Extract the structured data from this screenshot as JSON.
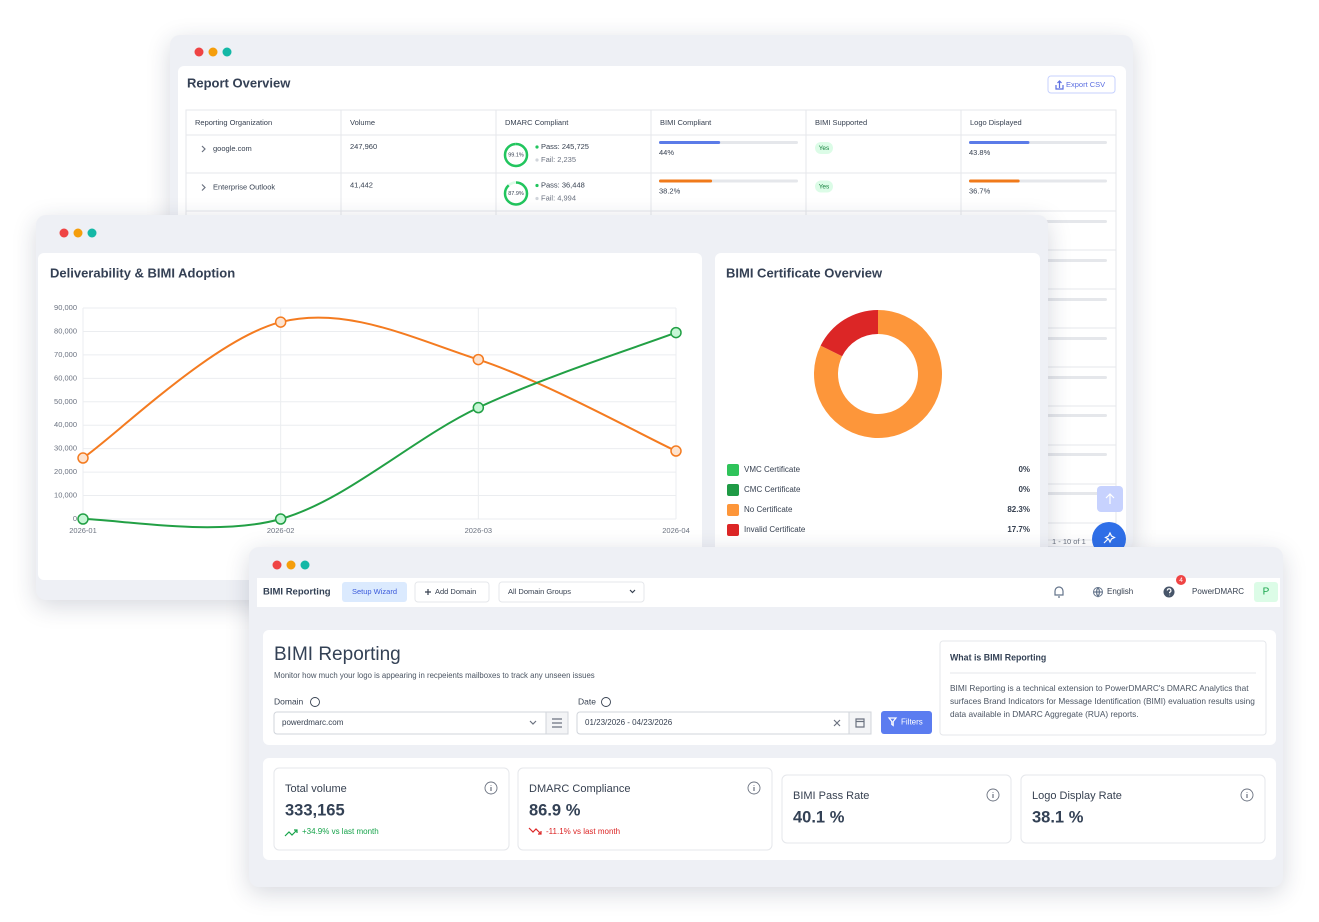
{
  "report_overview": {
    "title": "Report Overview",
    "export": "Export CSV",
    "columns": [
      "Reporting Organization",
      "Volume",
      "DMARC Compliant",
      "BIMI Compliant",
      "BIMI Supported",
      "Logo Displayed"
    ],
    "rows": [
      {
        "organization": "google.com",
        "volume": "247,960",
        "dmarc": {
          "value": 99.1,
          "label": "99.1%"
        },
        "pass": "Pass: 245,725",
        "fail": "Fail: 2,235",
        "bimi_compliant": {
          "value": 44,
          "label": "44%",
          "color": "#5b7be8"
        },
        "bimi_supported": "Yes",
        "logo_displayed": {
          "value": 43.8,
          "label": "43.8%",
          "color": "#5b7be8"
        }
      },
      {
        "organization": "Enterprise Outlook",
        "volume": "41,442",
        "dmarc": {
          "value": 87.9,
          "label": "87.9%"
        },
        "pass": "Pass: 36,448",
        "fail": "Fail: 4,994",
        "bimi_compliant": {
          "value": 38.2,
          "label": "38.2%",
          "color": "#f07a1a"
        },
        "bimi_supported": "Yes",
        "logo_displayed": {
          "value": 36.7,
          "label": "36.7%",
          "color": "#f07a1a"
        }
      }
    ],
    "pagination": "1 - 10 of 1"
  },
  "deliverability_chart": {
    "type": "line",
    "title": "Deliverability & BIMI Adoption",
    "categories": [
      "2026-01",
      "2026-02",
      "2026-03",
      "2026-04"
    ],
    "series": [
      {
        "color": "#f47b20",
        "values": [
          26000,
          84000,
          68000,
          29000
        ]
      },
      {
        "color": "#22a045",
        "values": [
          0,
          0,
          47500,
          79500
        ]
      }
    ],
    "ylim": [
      0,
      90000
    ],
    "yticks": [
      0,
      {
        "value": 10000,
        "label": "10,000"
      },
      {
        "value": 20000,
        "label": "20,000"
      },
      {
        "value": 30000,
        "label": "30,000"
      },
      {
        "value": 40000,
        "label": "40,000"
      },
      {
        "value": 50000,
        "label": "50,000"
      },
      {
        "value": 60000,
        "label": "60,000"
      },
      {
        "value": 70000,
        "label": "70,000"
      },
      {
        "value": 80000,
        "label": "80,000"
      },
      {
        "value": 90000,
        "label": "90,000"
      }
    ],
    "grid": true
  },
  "certificate_chart": {
    "type": "pie",
    "title": "BIMI Certificate Overview",
    "categories": [
      "VMC Certificate",
      "CMC Certificate",
      "No Certificate",
      "Invalid Certificate"
    ],
    "values": [
      0,
      0,
      82.3,
      17.7
    ],
    "value_labels": [
      "0%",
      "0%",
      "82.3%",
      "17.7%"
    ],
    "colors": [
      "#2fc35a",
      "#1f9a45",
      "#fd963a",
      "#dc2626"
    ]
  },
  "bimi_reporting": {
    "nav": {
      "title": "BIMI Reporting",
      "setup": "Setup Wizard",
      "add_domain": "Add Domain",
      "groups": "All Domain Groups",
      "language": "English",
      "badge": "4",
      "account": "PowerDMARC",
      "avatar": "P"
    },
    "header": {
      "title": "BIMI Reporting",
      "subtitle": "Monitor how much your logo is appearing in recpeients mailboxes to track any unseen issues",
      "domain_label": "Domain",
      "domain": "powerdmarc.com",
      "date_label": "Date",
      "date": "01/23/2026 - 04/23/2026",
      "filters": "Filters"
    },
    "info": {
      "title": "What is BIMI Reporting",
      "text": "BIMI Reporting is a technical extension to PowerDMARC's DMARC Analytics that surfaces Brand Indicators for Message Identification (BIMI) evaluation results using data available in DMARC Aggregate (RUA) reports."
    },
    "stats": [
      {
        "label": "Total volume",
        "value": "333,165",
        "change": "+34.9% vs last month",
        "trend": "up"
      },
      {
        "label": "DMARC Compliance",
        "value": "86.9 %",
        "change": "-11.1% vs last month",
        "trend": "down"
      },
      {
        "label": "BIMI Pass Rate",
        "value": "40.1 %"
      },
      {
        "label": "Logo Display Rate",
        "value": "38.1 %"
      }
    ]
  }
}
